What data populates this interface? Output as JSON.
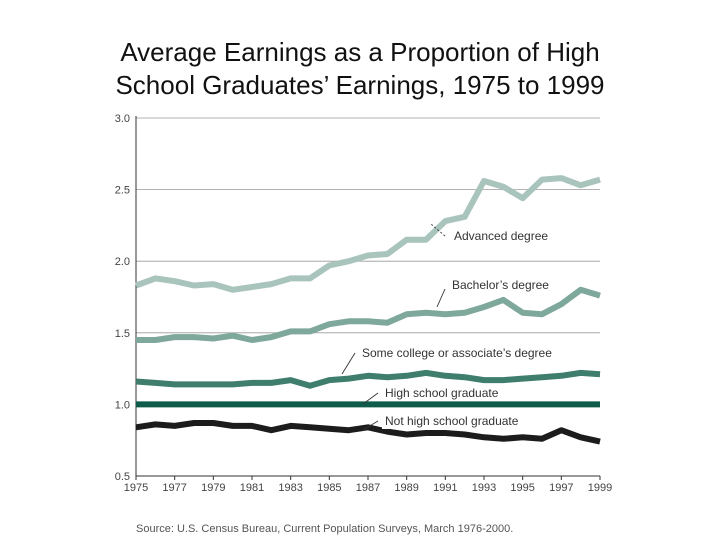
{
  "title_line1": "Average Earnings as a Proportion of High",
  "title_line2": "School Graduates’ Earnings, 1975 to 1999",
  "source": "Source: U.S. Census Bureau, Current Population Surveys, March 1976-2000.",
  "chart_data": {
    "type": "line",
    "title": "Average Earnings as a Proportion of High School Graduates’ Earnings, 1975 to 1999",
    "xlabel": "",
    "ylabel": "",
    "xlim": [
      1975,
      1999
    ],
    "ylim": [
      0.5,
      3.0
    ],
    "grid": true,
    "x_ticks": [
      "1975",
      "1977",
      "1979",
      "1981",
      "1983",
      "1985",
      "1987",
      "1989",
      "1991",
      "1993",
      "1995",
      "1997",
      "1999"
    ],
    "y_ticks": [
      "0.5",
      "1.0",
      "1.5",
      "2.0",
      "2.5",
      "3.0"
    ],
    "x": [
      1975,
      1976,
      1977,
      1978,
      1979,
      1980,
      1981,
      1982,
      1983,
      1984,
      1985,
      1986,
      1987,
      1988,
      1989,
      1990,
      1991,
      1992,
      1993,
      1994,
      1995,
      1996,
      1997,
      1998,
      1999
    ],
    "series": [
      {
        "name": "Advanced degree",
        "color": "#a9c4bc",
        "values": [
          1.83,
          1.88,
          1.86,
          1.83,
          1.84,
          1.8,
          1.82,
          1.84,
          1.88,
          1.88,
          1.97,
          2.0,
          2.04,
          2.05,
          2.15,
          2.15,
          2.28,
          2.31,
          2.56,
          2.52,
          2.44,
          2.57,
          2.58,
          2.53,
          2.57
        ]
      },
      {
        "name": "Bachelor’s degree",
        "color": "#7fa89c",
        "values": [
          1.45,
          1.45,
          1.47,
          1.47,
          1.46,
          1.48,
          1.45,
          1.47,
          1.51,
          1.51,
          1.56,
          1.58,
          1.58,
          1.57,
          1.63,
          1.64,
          1.63,
          1.64,
          1.68,
          1.73,
          1.64,
          1.63,
          1.7,
          1.8,
          1.76
        ]
      },
      {
        "name": "Some college or associate’s degree",
        "color": "#3f7d6d",
        "values": [
          1.16,
          1.15,
          1.14,
          1.14,
          1.14,
          1.14,
          1.15,
          1.15,
          1.17,
          1.13,
          1.17,
          1.18,
          1.2,
          1.19,
          1.2,
          1.22,
          1.2,
          1.19,
          1.17,
          1.17,
          1.18,
          1.19,
          1.2,
          1.22,
          1.21
        ]
      },
      {
        "name": "High school graduate",
        "color": "#0f5c4a",
        "values": [
          1.0,
          1.0,
          1.0,
          1.0,
          1.0,
          1.0,
          1.0,
          1.0,
          1.0,
          1.0,
          1.0,
          1.0,
          1.0,
          1.0,
          1.0,
          1.0,
          1.0,
          1.0,
          1.0,
          1.0,
          1.0,
          1.0,
          1.0,
          1.0,
          1.0
        ]
      },
      {
        "name": "Not high school graduate",
        "color": "#1c1c1c",
        "values": [
          0.84,
          0.86,
          0.85,
          0.87,
          0.87,
          0.85,
          0.85,
          0.82,
          0.85,
          0.84,
          0.83,
          0.82,
          0.84,
          0.81,
          0.79,
          0.8,
          0.8,
          0.79,
          0.77,
          0.76,
          0.77,
          0.76,
          0.82,
          0.77,
          0.74
        ]
      }
    ]
  }
}
